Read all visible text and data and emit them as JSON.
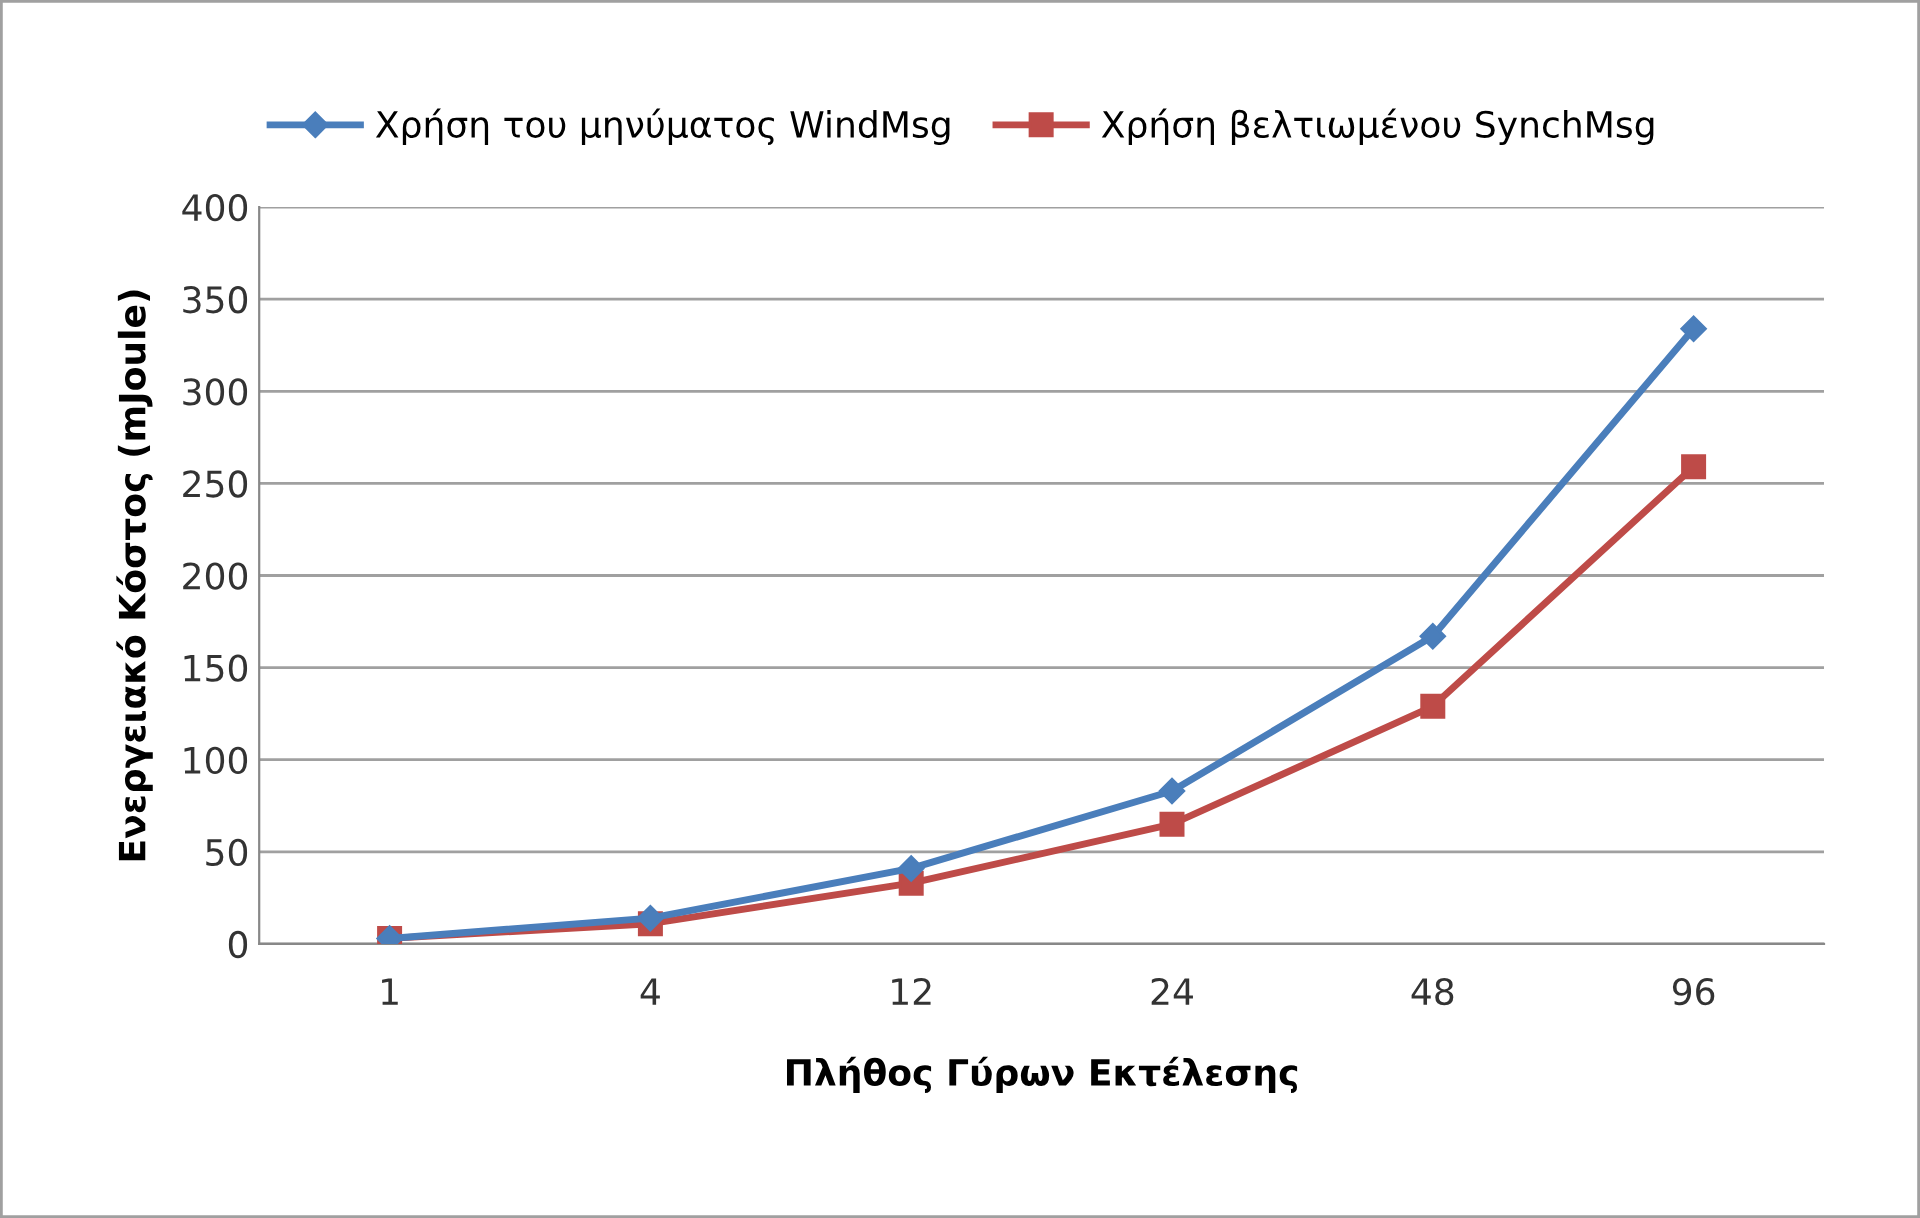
{
  "chart_data": {
    "type": "line",
    "xlabel": "Πλήθος Γύρων Εκτέλεσης",
    "ylabel": "Ενεργειακό Κόστος (mJoule)",
    "categories": [
      "1",
      "4",
      "12",
      "24",
      "48",
      "96"
    ],
    "series": [
      {
        "name": "Χρήση του μηνύματος WindMsg",
        "color": "#4a7ebb",
        "marker": "diamond",
        "values": [
          3,
          14,
          41,
          83,
          167,
          334
        ]
      },
      {
        "name": "Χρήση βελτιωμένου SynchMsg",
        "color": "#be4b48",
        "marker": "square",
        "values": [
          3,
          11,
          33,
          65,
          129,
          259
        ]
      }
    ],
    "ylim": [
      0,
      400
    ],
    "yticks": [
      0,
      50,
      100,
      150,
      200,
      250,
      300,
      350,
      400
    ],
    "grid": "y",
    "legend": "top",
    "line_style": "solid"
  }
}
